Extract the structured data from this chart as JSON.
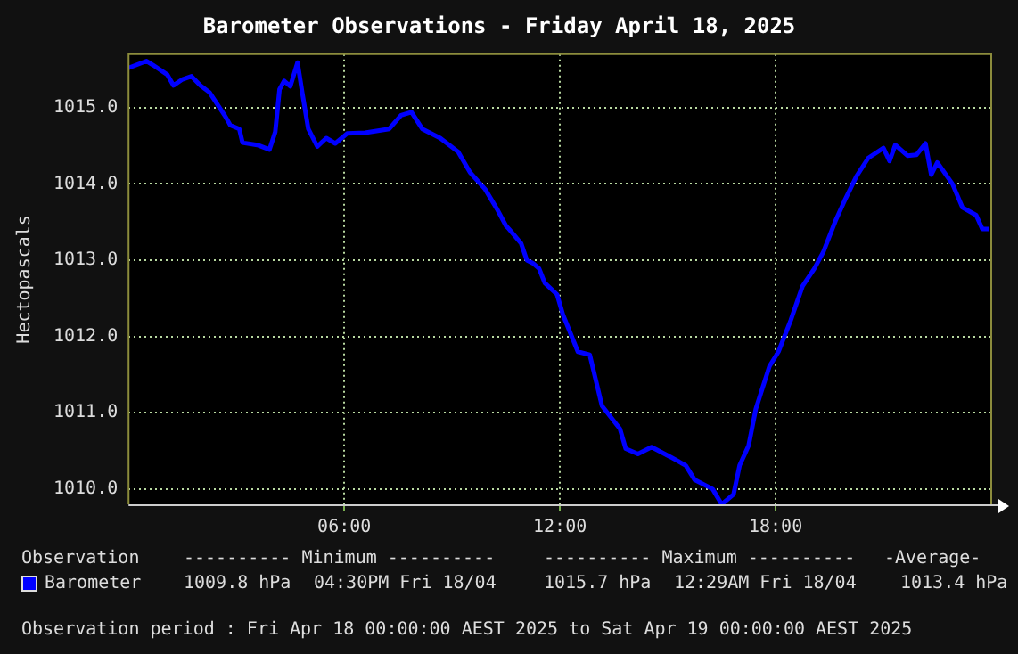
{
  "chart_data": {
    "type": "line",
    "title": "Barometer Observations - Friday April 18, 2025",
    "ylabel": "Hectopascals",
    "xlim": [
      0,
      24
    ],
    "xticks": [
      {
        "value": 6,
        "label": "06:00"
      },
      {
        "value": 12,
        "label": "12:00"
      },
      {
        "value": 18,
        "label": "18:00"
      }
    ],
    "ylim": [
      1009.8,
      1015.7
    ],
    "yticks": [
      {
        "value": 1010,
        "label": "1010.0"
      },
      {
        "value": 1011,
        "label": "1011.0"
      },
      {
        "value": 1012,
        "label": "1012.0"
      },
      {
        "value": 1013,
        "label": "1013.0"
      },
      {
        "value": 1014,
        "label": "1014.0"
      },
      {
        "value": 1015,
        "label": "1015.0"
      }
    ],
    "grid": true,
    "legend": "bottom",
    "marker": "none",
    "x": [
      0,
      0.5,
      0.67,
      1.08,
      1.25,
      1.5,
      1.75,
      2.0,
      2.25,
      2.67,
      2.83,
      3.08,
      3.17,
      3.58,
      3.92,
      4.08,
      4.2,
      4.33,
      4.5,
      4.7,
      4.83,
      5.0,
      5.25,
      5.5,
      5.75,
      6.08,
      6.58,
      7.25,
      7.58,
      7.87,
      8.17,
      8.67,
      9.17,
      9.5,
      9.92,
      10.25,
      10.5,
      10.58,
      10.92,
      11.08,
      11.25,
      11.42,
      11.58,
      11.92,
      12.08,
      12.5,
      12.83,
      13.17,
      13.67,
      13.83,
      14.17,
      14.55,
      15.08,
      15.5,
      15.75,
      16.25,
      16.5,
      16.83,
      17.0,
      17.25,
      17.45,
      17.83,
      18.08,
      18.42,
      18.75,
      19.08,
      19.33,
      19.67,
      19.92,
      20.25,
      20.58,
      21.0,
      21.17,
      21.33,
      21.67,
      21.92,
      22.17,
      22.33,
      22.5,
      22.92,
      23.2,
      23.58,
      23.75,
      23.95
    ],
    "series": [
      {
        "name": "Barometer",
        "color": "#0000ff",
        "values": [
          1015.52,
          1015.61,
          1015.56,
          1015.43,
          1015.29,
          1015.37,
          1015.41,
          1015.29,
          1015.2,
          1014.9,
          1014.77,
          1014.72,
          1014.54,
          1014.51,
          1014.45,
          1014.68,
          1015.24,
          1015.35,
          1015.28,
          1015.59,
          1015.2,
          1014.72,
          1014.49,
          1014.6,
          1014.53,
          1014.66,
          1014.67,
          1014.72,
          1014.9,
          1014.94,
          1014.72,
          1014.6,
          1014.42,
          1014.15,
          1013.93,
          1013.67,
          1013.45,
          1013.41,
          1013.22,
          1013.0,
          1012.96,
          1012.89,
          1012.7,
          1012.55,
          1012.29,
          1011.8,
          1011.76,
          1011.09,
          1010.79,
          1010.53,
          1010.46,
          1010.55,
          1010.42,
          1010.31,
          1010.12,
          1010.0,
          1009.8,
          1009.93,
          1010.31,
          1010.57,
          1011.05,
          1011.61,
          1011.8,
          1012.21,
          1012.66,
          1012.89,
          1013.11,
          1013.52,
          1013.78,
          1014.1,
          1014.34,
          1014.47,
          1014.3,
          1014.51,
          1014.37,
          1014.38,
          1014.53,
          1014.12,
          1014.28,
          1014.0,
          1013.69,
          1013.59,
          1013.41,
          1013.41
        ]
      }
    ],
    "annotations": [
      "Observation",
      "---------- Minimum ----------",
      "---------- Maximum ----------",
      "-Average-",
      "1009.8 hPa",
      "04:30PM Fri 18/04",
      "1015.7 hPa",
      "12:29AM Fri 18/04",
      "1013.4 hPa",
      "Observation period : Fri Apr 18 00:00:00 AEST 2025 to Sat Apr 19 00:00:00 AEST 2025"
    ]
  }
}
